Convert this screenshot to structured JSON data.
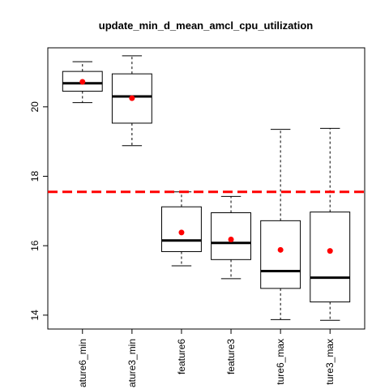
{
  "chart_data": {
    "type": "box",
    "title": "update_min_d_mean_amcl_cpu_utilization",
    "xlabel": "",
    "ylabel": "",
    "ylim": [
      13.6,
      21.7
    ],
    "yticks": [
      14,
      16,
      18,
      20
    ],
    "categories": [
      "ature6_min",
      "ature3_min",
      "feature6",
      "feature3",
      "ture6_max",
      "ture3_max"
    ],
    "boxes": [
      {
        "label": "ature6_min",
        "whisker_low": 20.12,
        "q1": 20.45,
        "median": 20.68,
        "q3": 21.02,
        "whisker_high": 21.3,
        "mean": 20.72
      },
      {
        "label": "ature3_min",
        "whisker_low": 18.88,
        "q1": 19.53,
        "median": 20.3,
        "q3": 20.95,
        "whisker_high": 21.47,
        "mean": 20.25
      },
      {
        "label": "feature6",
        "whisker_low": 15.42,
        "q1": 15.83,
        "median": 16.15,
        "q3": 17.12,
        "whisker_high": 17.55,
        "mean": 16.38
      },
      {
        "label": "feature3",
        "whisker_low": 15.05,
        "q1": 15.6,
        "median": 16.08,
        "q3": 16.95,
        "whisker_high": 17.42,
        "mean": 16.18
      },
      {
        "label": "ture6_max",
        "whisker_low": 13.87,
        "q1": 14.77,
        "median": 15.27,
        "q3": 16.72,
        "whisker_high": 19.35,
        "mean": 15.88
      },
      {
        "label": "ture3_max",
        "whisker_low": 13.85,
        "q1": 14.38,
        "median": 15.08,
        "q3": 16.97,
        "whisker_high": 19.38,
        "mean": 15.85
      }
    ],
    "reference_line": {
      "y": 17.55,
      "style": "dashed",
      "color": "#ff0000"
    },
    "mean_marker_color": "#ff0000",
    "grid": false,
    "legend": "none"
  }
}
